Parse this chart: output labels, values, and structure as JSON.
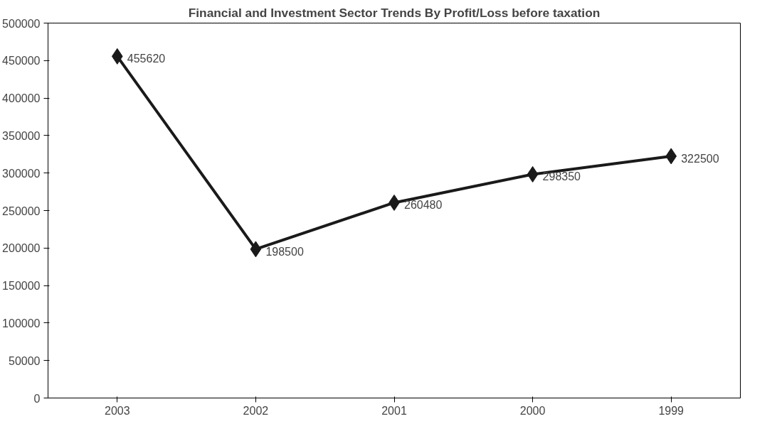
{
  "chart_data": {
    "type": "line",
    "title": "Financial and Investment Sector Trends By Profit/Loss before taxation",
    "categories": [
      "2003",
      "2002",
      "2001",
      "2000",
      "1999"
    ],
    "series": [
      {
        "color": "#1a1a1a",
        "values": [
          455620,
          198500,
          260480,
          298350,
          322500
        ]
      }
    ],
    "ylim": [
      0,
      500000
    ],
    "yticks": [
      0,
      50000,
      100000,
      150000,
      200000,
      250000,
      300000,
      350000,
      400000,
      450000,
      500000
    ],
    "marker": "diamond",
    "line_style": "solid",
    "data_labels": true,
    "grid": false
  }
}
